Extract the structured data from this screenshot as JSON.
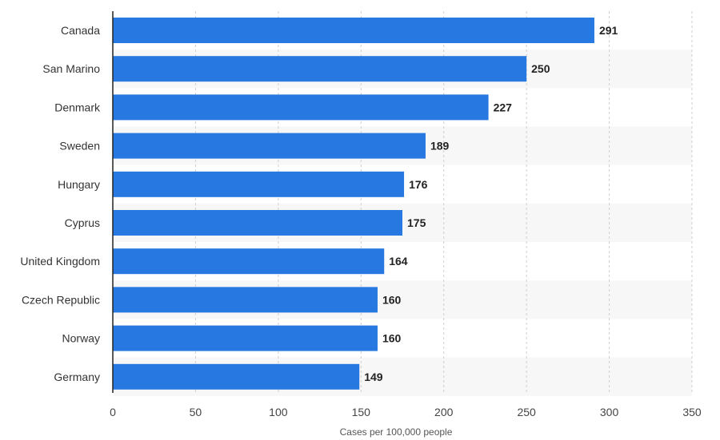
{
  "chart_data": {
    "type": "bar",
    "orientation": "horizontal",
    "categories": [
      "Canada",
      "San Marino",
      "Denmark",
      "Sweden",
      "Hungary",
      "Cyprus",
      "United Kingdom",
      "Czech Republic",
      "Norway",
      "Germany"
    ],
    "values": [
      291,
      250,
      227,
      189,
      176,
      175,
      164,
      160,
      160,
      149
    ],
    "xlabel": "Cases per 100,000 people",
    "ylabel": "",
    "xlim": [
      0,
      350
    ],
    "xticks": [
      0,
      50,
      100,
      150,
      200,
      250,
      300,
      350
    ],
    "grid": true,
    "legend": "none",
    "bar_color": "#2778e0"
  }
}
